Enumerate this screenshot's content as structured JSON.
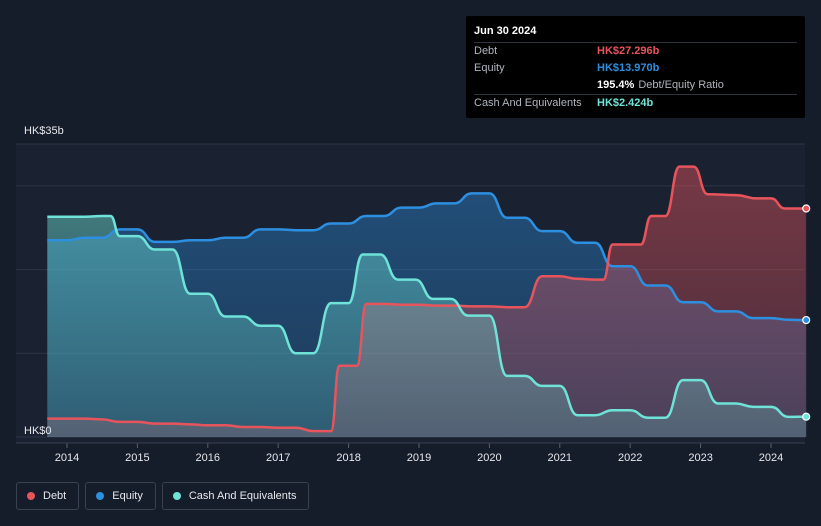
{
  "tooltip": {
    "date": "Jun 30 2024",
    "debt_label": "Debt",
    "debt_value": "HK$27.296b",
    "equity_label": "Equity",
    "equity_value": "HK$13.970b",
    "ratio_value": "195.4%",
    "ratio_label": "Debt/Equity Ratio",
    "cash_label": "Cash And Equivalents",
    "cash_value": "HK$2.424b"
  },
  "legend": {
    "debt": "Debt",
    "equity": "Equity",
    "cash": "Cash And Equivalents"
  },
  "colors": {
    "debt": "#e8545c",
    "equity": "#2d8fe0",
    "cash": "#6fe3d8",
    "background": "#151c2a"
  },
  "chart_data": {
    "type": "area",
    "ylabel_top": "HK$35b",
    "ylabel_bottom": "HK$0",
    "ylim": [
      0,
      35
    ],
    "xlim": [
      2013.72,
      2024.5
    ],
    "x_ticks": [
      "2014",
      "2015",
      "2016",
      "2017",
      "2018",
      "2019",
      "2020",
      "2021",
      "2022",
      "2023",
      "2024"
    ],
    "grid": true,
    "series": [
      {
        "name": "Debt",
        "key": "debt",
        "points": [
          [
            2013.72,
            2.2
          ],
          [
            2014.25,
            2.2
          ],
          [
            2014.5,
            2.1
          ],
          [
            2014.75,
            1.8
          ],
          [
            2015.0,
            1.8
          ],
          [
            2015.25,
            1.6
          ],
          [
            2015.5,
            1.6
          ],
          [
            2015.75,
            1.5
          ],
          [
            2016.0,
            1.4
          ],
          [
            2016.25,
            1.4
          ],
          [
            2016.5,
            1.2
          ],
          [
            2016.75,
            1.2
          ],
          [
            2017.0,
            1.1
          ],
          [
            2017.25,
            1.1
          ],
          [
            2017.5,
            0.7
          ],
          [
            2017.75,
            0.7
          ],
          [
            2017.87,
            8.5
          ],
          [
            2018.0,
            8.5
          ],
          [
            2018.12,
            8.5
          ],
          [
            2018.25,
            15.9
          ],
          [
            2018.5,
            15.9
          ],
          [
            2018.75,
            15.8
          ],
          [
            2019.0,
            15.8
          ],
          [
            2019.25,
            15.7
          ],
          [
            2019.5,
            15.7
          ],
          [
            2019.75,
            15.6
          ],
          [
            2020.0,
            15.6
          ],
          [
            2020.25,
            15.5
          ],
          [
            2020.5,
            15.5
          ],
          [
            2020.75,
            19.2
          ],
          [
            2021.0,
            19.2
          ],
          [
            2021.25,
            18.9
          ],
          [
            2021.5,
            18.8
          ],
          [
            2021.62,
            18.8
          ],
          [
            2021.75,
            23.0
          ],
          [
            2022.0,
            23.0
          ],
          [
            2022.15,
            23.0
          ],
          [
            2022.3,
            26.4
          ],
          [
            2022.5,
            26.4
          ],
          [
            2022.7,
            32.3
          ],
          [
            2022.9,
            32.3
          ],
          [
            2023.1,
            29.0
          ],
          [
            2023.5,
            28.9
          ],
          [
            2023.8,
            28.5
          ],
          [
            2024.0,
            28.5
          ],
          [
            2024.2,
            27.3
          ],
          [
            2024.5,
            27.296
          ]
        ]
      },
      {
        "name": "Equity",
        "key": "equity",
        "points": [
          [
            2013.72,
            23.5
          ],
          [
            2014.0,
            23.5
          ],
          [
            2014.25,
            23.8
          ],
          [
            2014.5,
            23.8
          ],
          [
            2014.75,
            24.8
          ],
          [
            2015.0,
            24.8
          ],
          [
            2015.25,
            23.3
          ],
          [
            2015.5,
            23.3
          ],
          [
            2015.75,
            23.5
          ],
          [
            2016.0,
            23.5
          ],
          [
            2016.25,
            23.8
          ],
          [
            2016.5,
            23.8
          ],
          [
            2016.75,
            24.8
          ],
          [
            2017.0,
            24.8
          ],
          [
            2017.25,
            24.7
          ],
          [
            2017.5,
            24.7
          ],
          [
            2017.75,
            25.5
          ],
          [
            2018.0,
            25.5
          ],
          [
            2018.25,
            26.4
          ],
          [
            2018.5,
            26.4
          ],
          [
            2018.75,
            27.4
          ],
          [
            2019.0,
            27.4
          ],
          [
            2019.25,
            27.9
          ],
          [
            2019.5,
            27.9
          ],
          [
            2019.75,
            29.1
          ],
          [
            2020.0,
            29.1
          ],
          [
            2020.25,
            26.2
          ],
          [
            2020.5,
            26.2
          ],
          [
            2020.75,
            24.6
          ],
          [
            2021.0,
            24.6
          ],
          [
            2021.25,
            23.2
          ],
          [
            2021.5,
            23.2
          ],
          [
            2021.75,
            20.4
          ],
          [
            2022.0,
            20.4
          ],
          [
            2022.25,
            18.1
          ],
          [
            2022.5,
            18.1
          ],
          [
            2022.75,
            16.1
          ],
          [
            2023.0,
            16.1
          ],
          [
            2023.25,
            15.0
          ],
          [
            2023.5,
            15.0
          ],
          [
            2023.75,
            14.2
          ],
          [
            2024.0,
            14.2
          ],
          [
            2024.25,
            14.0
          ],
          [
            2024.5,
            13.97
          ]
        ]
      },
      {
        "name": "Cash And Equivalents",
        "key": "cash",
        "points": [
          [
            2013.72,
            26.3
          ],
          [
            2014.25,
            26.3
          ],
          [
            2014.5,
            26.4
          ],
          [
            2014.62,
            26.4
          ],
          [
            2014.75,
            24.0
          ],
          [
            2015.0,
            24.0
          ],
          [
            2015.25,
            22.4
          ],
          [
            2015.5,
            22.4
          ],
          [
            2015.75,
            17.1
          ],
          [
            2016.0,
            17.1
          ],
          [
            2016.25,
            14.4
          ],
          [
            2016.5,
            14.4
          ],
          [
            2016.75,
            13.3
          ],
          [
            2017.0,
            13.3
          ],
          [
            2017.25,
            10.0
          ],
          [
            2017.5,
            10.0
          ],
          [
            2017.75,
            16.0
          ],
          [
            2018.0,
            16.0
          ],
          [
            2018.2,
            21.8
          ],
          [
            2018.45,
            21.8
          ],
          [
            2018.7,
            18.8
          ],
          [
            2018.95,
            18.8
          ],
          [
            2019.2,
            16.5
          ],
          [
            2019.45,
            16.5
          ],
          [
            2019.7,
            14.5
          ],
          [
            2020.0,
            14.5
          ],
          [
            2020.25,
            7.3
          ],
          [
            2020.5,
            7.3
          ],
          [
            2020.75,
            6.1
          ],
          [
            2021.0,
            6.1
          ],
          [
            2021.25,
            2.6
          ],
          [
            2021.5,
            2.6
          ],
          [
            2021.75,
            3.2
          ],
          [
            2022.0,
            3.2
          ],
          [
            2022.25,
            2.3
          ],
          [
            2022.5,
            2.3
          ],
          [
            2022.75,
            6.8
          ],
          [
            2023.0,
            6.8
          ],
          [
            2023.25,
            4.0
          ],
          [
            2023.5,
            4.0
          ],
          [
            2023.75,
            3.6
          ],
          [
            2024.0,
            3.6
          ],
          [
            2024.25,
            2.4
          ],
          [
            2024.5,
            2.424
          ]
        ]
      }
    ]
  }
}
